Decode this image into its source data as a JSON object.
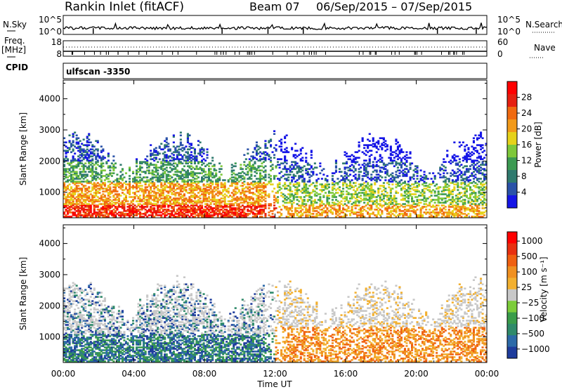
{
  "header": {
    "title": "Rankin Inlet (fitACF)",
    "beam": "Beam 07",
    "date_range": "06/Sep/2015 – 07/Sep/2015"
  },
  "status_panels": {
    "nsky_label": "N.Sky",
    "nsky_ticks": [
      "10^5",
      "10^0"
    ],
    "nsearch_label": "N.Search",
    "freq_label": "Freq.",
    "freq_unit": "[MHz]",
    "freq_ticks": [
      "18",
      "8"
    ],
    "nave_ticks": [
      "60",
      "0"
    ],
    "nave_label": "Nave",
    "cpid_label": "CPID",
    "cpid_value": "ulfscan -3350"
  },
  "chart_data": [
    {
      "type": "heatmap",
      "title": "",
      "xlabel": "Time UT",
      "ylabel": "Slant Range [km]",
      "x_ticks": [
        "00:00",
        "04:00",
        "08:00",
        "12:00",
        "16:00",
        "20:00",
        "00:00"
      ],
      "y_ticks": [
        "1000",
        "2000",
        "3000",
        "4000"
      ],
      "xlim_hours": [
        0,
        24
      ],
      "ylim_km": [
        180,
        4600
      ],
      "colorbar": {
        "label": "Power [dB]",
        "ticks": [
          "4",
          "8",
          "12",
          "16",
          "20",
          "24",
          "28"
        ],
        "colors": [
          "#1515e6",
          "#2a52a8",
          "#2f7a6e",
          "#3c9a52",
          "#7ec83a",
          "#e6d21a",
          "#f29a1a",
          "#f06a10",
          "#e62010",
          "#ff0000"
        ]
      }
    },
    {
      "type": "heatmap",
      "title": "",
      "xlabel": "Time UT",
      "ylabel": "Slant Range [km]",
      "x_ticks": [
        "00:00",
        "04:00",
        "08:00",
        "12:00",
        "16:00",
        "20:00",
        "00:00"
      ],
      "y_ticks": [
        "1000",
        "2000",
        "3000",
        "4000"
      ],
      "xlim_hours": [
        0,
        24
      ],
      "ylim_km": [
        180,
        4600
      ],
      "colorbar": {
        "label": "Velocity [m s⁻¹]",
        "ticks": [
          "1000",
          "500",
          "100",
          "25",
          "−25",
          "−100",
          "−500",
          "−1000"
        ],
        "colors": [
          "#1e3c9c",
          "#2c6aa8",
          "#2f8a6a",
          "#3a9c4a",
          "#7ccc3a",
          "#c8c8c8",
          "#f2b030",
          "#f09020",
          "#f06010",
          "#e83010",
          "#ff0000"
        ]
      }
    }
  ]
}
